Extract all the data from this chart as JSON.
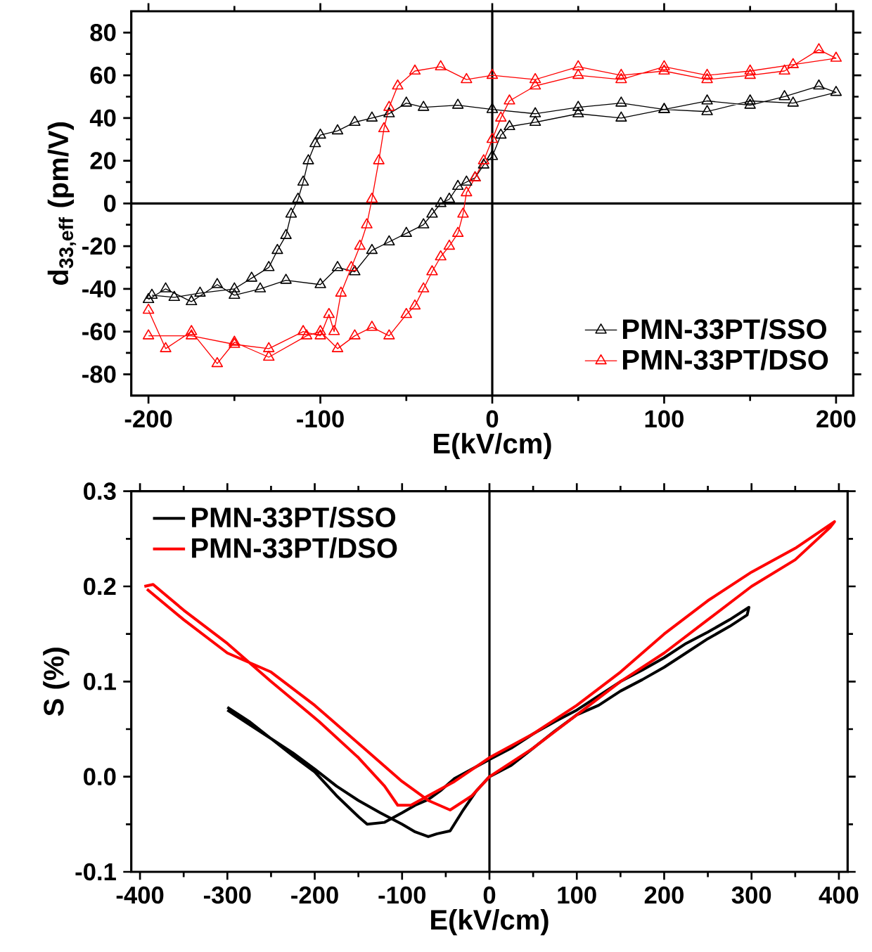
{
  "chart_data": [
    {
      "type": "line",
      "xlabel": "E(kV/cm)",
      "ylabel": "d$_{33,eff}$ (pm/V)",
      "xlim": [
        -210,
        210
      ],
      "ylim": [
        -90,
        90
      ],
      "xticks": [
        -200,
        -100,
        0,
        100,
        200
      ],
      "yticks": [
        -80,
        -60,
        -40,
        -20,
        0,
        20,
        40,
        60,
        80
      ],
      "grid": false,
      "legend": "bottom right",
      "marker": "triangle",
      "line_style": "solid",
      "ref_lines": [
        {
          "axis": "x",
          "value": 0,
          "color": "#000000"
        },
        {
          "axis": "y",
          "value": 0,
          "color": "#000000"
        }
      ],
      "series": [
        {
          "name": "PMN-33PT/SSO",
          "color": "#000000",
          "x": [
            -200,
            -190,
            -175,
            -160,
            -150,
            -135,
            -120,
            -100,
            -90,
            -80,
            -70,
            -60,
            -50,
            -40,
            -35,
            -30,
            -25,
            -20,
            -15,
            -10,
            -5,
            0,
            5,
            10,
            25,
            50,
            75,
            100,
            125,
            150,
            175,
            200,
            190,
            170,
            150,
            125,
            100,
            75,
            50,
            25,
            0,
            -20,
            -40,
            -50,
            -60,
            -70,
            -80,
            -90,
            -100,
            -103,
            -107,
            -110,
            -113,
            -117,
            -120,
            -125,
            -130,
            -140,
            -150,
            -170,
            -185,
            -198
          ],
          "values": [
            -45,
            -40,
            -46,
            -38,
            -43,
            -40,
            -36,
            -38,
            -30,
            -32,
            -22,
            -18,
            -14,
            -10,
            -5,
            0,
            2,
            8,
            10,
            12,
            18,
            22,
            32,
            36,
            38,
            42,
            40,
            44,
            43,
            48,
            47,
            52,
            55,
            50,
            46,
            48,
            44,
            47,
            45,
            42,
            44,
            46,
            45,
            47,
            42,
            40,
            38,
            34,
            32,
            28,
            20,
            10,
            2,
            -5,
            -15,
            -22,
            -30,
            -35,
            -40,
            -42,
            -44,
            -43
          ]
        },
        {
          "name": "PMN-33PT/DSO",
          "color": "#ff0000",
          "x": [
            -200,
            -190,
            -175,
            -160,
            -150,
            -130,
            -108,
            -100,
            -90,
            -80,
            -70,
            -60,
            -50,
            -45,
            -40,
            -35,
            -30,
            -25,
            -20,
            -17,
            -15,
            -10,
            -5,
            0,
            5,
            10,
            25,
            50,
            75,
            100,
            125,
            150,
            175,
            200,
            190,
            170,
            150,
            125,
            100,
            75,
            50,
            25,
            0,
            -15,
            -30,
            -45,
            -55,
            -60,
            -63,
            -66,
            -70,
            -73,
            -77,
            -82,
            -88,
            -92,
            -95,
            -100,
            -110,
            -130,
            -150,
            -175,
            -200
          ],
          "values": [
            -50,
            -68,
            -60,
            -75,
            -65,
            -72,
            -62,
            -60,
            -68,
            -62,
            -58,
            -62,
            -52,
            -48,
            -40,
            -32,
            -25,
            -20,
            -14,
            -5,
            5,
            12,
            20,
            30,
            40,
            48,
            55,
            60,
            58,
            64,
            60,
            62,
            65,
            68,
            72,
            62,
            60,
            58,
            62,
            60,
            64,
            58,
            60,
            58,
            64,
            62,
            55,
            45,
            35,
            20,
            2,
            -10,
            -20,
            -30,
            -42,
            -60,
            -52,
            -62,
            -60,
            -68,
            -66,
            -62,
            -62
          ]
        }
      ]
    },
    {
      "type": "line",
      "xlabel": "E(kV/cm)",
      "ylabel": "S (%)",
      "xlim": [
        -410,
        410
      ],
      "ylim": [
        -0.1,
        0.3
      ],
      "xticks": [
        -400,
        -300,
        -200,
        -100,
        0,
        100,
        200,
        300,
        400
      ],
      "yticks": [
        -0.1,
        {
          "value": 0,
          "label": "0.0"
        },
        0.1,
        0.2,
        0.3
      ],
      "grid": false,
      "legend": "top left",
      "line_style": "solid",
      "ref_lines": [
        {
          "axis": "x",
          "value": 0,
          "color": "#000000"
        }
      ],
      "series": [
        {
          "name": "PMN-33PT/SSO",
          "color": "#000000",
          "x": [
            -300,
            -275,
            -250,
            -225,
            -200,
            -175,
            -150,
            -140,
            -120,
            -100,
            -85,
            -70,
            -55,
            -40,
            -20,
            0,
            25,
            50,
            75,
            100,
            125,
            150,
            175,
            200,
            225,
            250,
            275,
            297,
            295,
            275,
            250,
            225,
            200,
            175,
            150,
            125,
            100,
            75,
            50,
            25,
            0,
            -15,
            -30,
            -45,
            -60,
            -70,
            -85,
            -100,
            -125,
            -150,
            -175,
            -200,
            -225,
            -250,
            -275,
            -300
          ],
          "values": [
            0.073,
            0.058,
            0.04,
            0.022,
            0.005,
            -0.02,
            -0.042,
            -0.05,
            -0.048,
            -0.038,
            -0.03,
            -0.024,
            -0.014,
            -0.002,
            0.008,
            0.018,
            0.03,
            0.045,
            0.058,
            0.07,
            0.085,
            0.1,
            0.112,
            0.125,
            0.14,
            0.152,
            0.165,
            0.178,
            0.17,
            0.158,
            0.145,
            0.13,
            0.115,
            0.102,
            0.09,
            0.075,
            0.065,
            0.048,
            0.03,
            0.012,
            0.0,
            -0.015,
            -0.035,
            -0.057,
            -0.06,
            -0.063,
            -0.058,
            -0.05,
            -0.038,
            -0.025,
            -0.01,
            0.008,
            0.025,
            0.04,
            0.055,
            0.07
          ]
        },
        {
          "name": "PMN-33PT/DSO",
          "color": "#ff0000",
          "x": [
            -395,
            -385,
            -350,
            -300,
            -250,
            -195,
            -150,
            -120,
            -105,
            -90,
            -70,
            -40,
            0,
            50,
            100,
            150,
            200,
            250,
            300,
            350,
            395,
            390,
            350,
            300,
            250,
            200,
            150,
            100,
            50,
            0,
            -20,
            -45,
            -70,
            -100,
            -150,
            -200,
            -250,
            -300,
            -350,
            -392
          ],
          "values": [
            0.2,
            0.202,
            0.175,
            0.14,
            0.1,
            0.058,
            0.02,
            -0.01,
            -0.03,
            -0.03,
            -0.02,
            -0.005,
            0.02,
            0.045,
            0.075,
            0.11,
            0.15,
            0.185,
            0.215,
            0.24,
            0.268,
            0.262,
            0.228,
            0.2,
            0.165,
            0.13,
            0.1,
            0.065,
            0.03,
            0.0,
            -0.02,
            -0.035,
            -0.025,
            -0.005,
            0.035,
            0.075,
            0.11,
            0.13,
            0.165,
            0.197
          ]
        }
      ]
    }
  ]
}
